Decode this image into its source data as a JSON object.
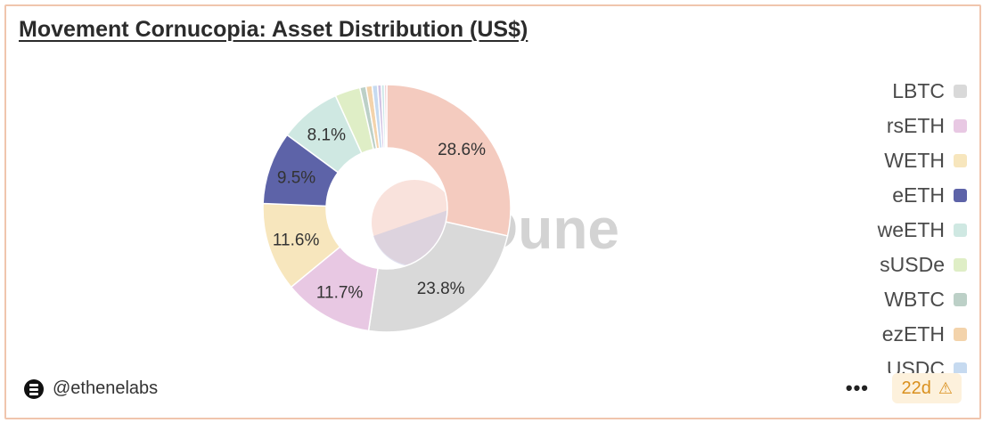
{
  "title": "Movement Cornucopia: Asset Distribution (US$)",
  "watermark": "Dune",
  "author": "@ethenelabs",
  "footer": {
    "more_label": "•••",
    "age": "22d",
    "warning_icon": "⚠"
  },
  "chart_data": {
    "type": "pie",
    "donut": true,
    "title": "Movement Cornucopia: Asset Distribution (US$)",
    "legend_position": "right",
    "slices": [
      {
        "label": "28.6%",
        "value": 28.6,
        "color": "#f4cbbf",
        "shown_label": true
      },
      {
        "label": "23.8%",
        "value": 23.8,
        "color": "#d9d9d9",
        "shown_label": true
      },
      {
        "label": "11.7%",
        "value": 11.7,
        "color": "#e8c8e3",
        "shown_label": true
      },
      {
        "label": "11.6%",
        "value": 11.6,
        "color": "#f7e6bd",
        "shown_label": true
      },
      {
        "label": "9.5%",
        "value": 9.5,
        "color": "#5d63a8",
        "shown_label": true
      },
      {
        "label": "8.1%",
        "value": 8.1,
        "color": "#cfe8e2",
        "shown_label": true
      },
      {
        "label": "",
        "value": 3.3,
        "color": "#dfeec6",
        "shown_label": false
      },
      {
        "label": "",
        "value": 0.8,
        "color": "#bcd0c7",
        "shown_label": false
      },
      {
        "label": "",
        "value": 0.8,
        "color": "#f3d3ab",
        "shown_label": false
      },
      {
        "label": "",
        "value": 0.7,
        "color": "#c6daf0",
        "shown_label": false
      },
      {
        "label": "",
        "value": 0.5,
        "color": "#d2c3e3",
        "shown_label": false
      },
      {
        "label": "",
        "value": 0.4,
        "color": "#c9e6e6",
        "shown_label": false
      },
      {
        "label": "",
        "value": 0.3,
        "color": "#efc8cf",
        "shown_label": false
      }
    ],
    "legend": [
      {
        "name": "LBTC",
        "color": "#d9d9d9"
      },
      {
        "name": "rsETH",
        "color": "#e8c8e3"
      },
      {
        "name": "WETH",
        "color": "#f7e6bd"
      },
      {
        "name": "eETH",
        "color": "#5d63a8"
      },
      {
        "name": "weETH",
        "color": "#cfe8e2"
      },
      {
        "name": "sUSDe",
        "color": "#dfeec6"
      },
      {
        "name": "WBTC",
        "color": "#bcd0c7"
      },
      {
        "name": "ezETH",
        "color": "#f3d3ab"
      },
      {
        "name": "USDC",
        "color": "#c6daf0"
      }
    ]
  }
}
